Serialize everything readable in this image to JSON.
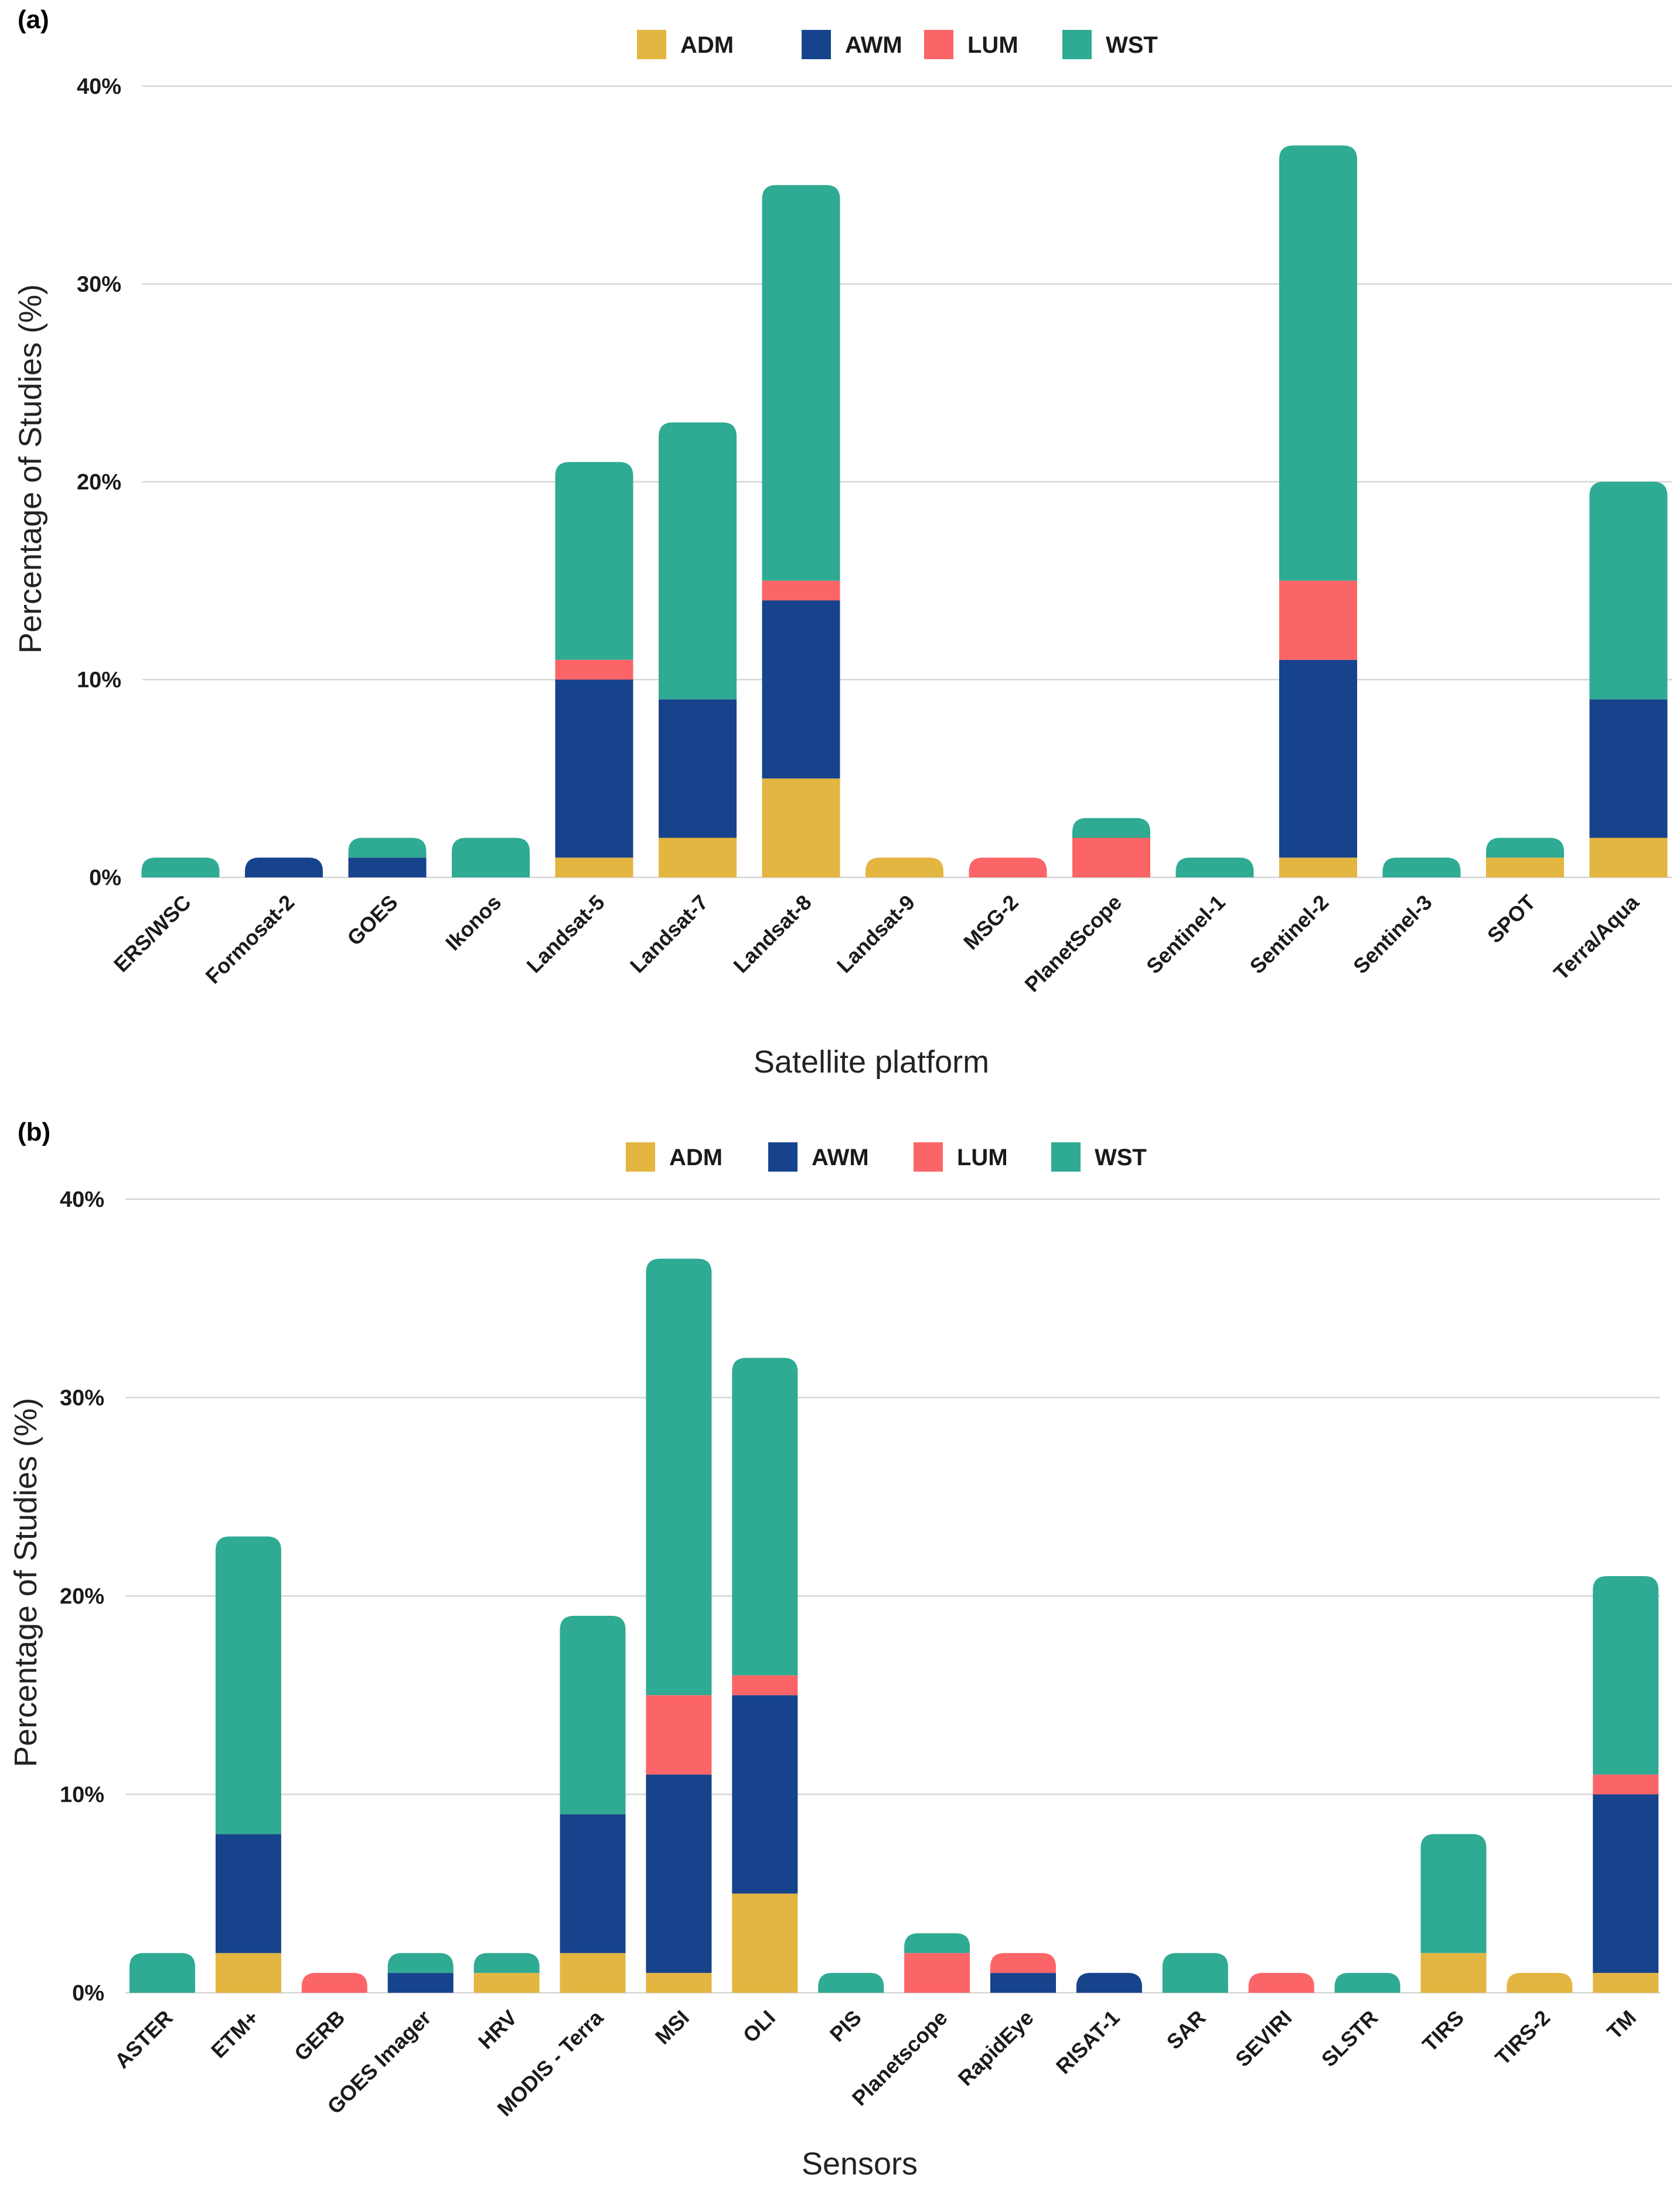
{
  "colors": {
    "ADM": "#E3B541",
    "AWM": "#17438C",
    "LUM": "#FC6567",
    "WST": "#2FAA93"
  },
  "chart_data": [
    {
      "type": "bar",
      "stacked": true,
      "panel_label": "(a)",
      "xlabel": "Satellite platform",
      "ylabel": "Percentage of Studies (%)",
      "ylim": [
        0,
        40
      ],
      "yticks": [
        "0%",
        "10%",
        "20%",
        "30%",
        "40%"
      ],
      "legend": [
        "ADM",
        "AWM",
        "LUM",
        "WST"
      ],
      "categories": [
        "ERS/WSC",
        "Formosat-2",
        "GOES",
        "Ikonos",
        "Landsat-5",
        "Landsat-7",
        "Landsat-8",
        "Landsat-9",
        "MSG-2",
        "PlanetScope",
        "Sentinel-1",
        "Sentinel-2",
        "Sentinel-3",
        "SPOT",
        "Terra/Aqua"
      ],
      "series": [
        {
          "name": "ADM",
          "values": [
            0,
            0,
            0,
            0,
            1,
            2,
            5,
            1,
            0,
            0,
            0,
            1,
            0,
            1,
            2
          ]
        },
        {
          "name": "AWM",
          "values": [
            0,
            1,
            1,
            0,
            9,
            7,
            9,
            0,
            0,
            0,
            0,
            10,
            0,
            0,
            7
          ]
        },
        {
          "name": "LUM",
          "values": [
            0,
            0,
            0,
            0,
            1,
            0,
            1,
            0,
            1,
            2,
            0,
            4,
            0,
            0,
            0
          ]
        },
        {
          "name": "WST",
          "values": [
            1,
            0,
            1,
            2,
            10,
            14,
            20,
            0,
            0,
            1,
            1,
            22,
            1,
            1,
            11
          ]
        }
      ]
    },
    {
      "type": "bar",
      "stacked": true,
      "panel_label": "(b)",
      "xlabel": "Sensors",
      "ylabel": "Percentage of Studies (%)",
      "ylim": [
        0,
        40
      ],
      "yticks": [
        "0%",
        "10%",
        "20%",
        "30%",
        "40%"
      ],
      "legend": [
        "ADM",
        "AWM",
        "LUM",
        "WST"
      ],
      "categories": [
        "ASTER",
        "ETM+",
        "GERB",
        "GOES Imager",
        "HRV",
        "MODIS - Terra",
        "MSI",
        "OLI",
        "PIS",
        "Planetscope",
        "RapidEye",
        "RISAT-1",
        "SAR",
        "SEVIRI",
        "SLSTR",
        "TIRS",
        "TIRS-2",
        "TM"
      ],
      "series": [
        {
          "name": "ADM",
          "values": [
            0,
            2,
            0,
            0,
            1,
            2,
            1,
            5,
            0,
            0,
            0,
            0,
            0,
            0,
            0,
            2,
            1,
            1
          ]
        },
        {
          "name": "AWM",
          "values": [
            0,
            6,
            0,
            1,
            0,
            7,
            10,
            10,
            0,
            0,
            1,
            1,
            0,
            0,
            0,
            0,
            0,
            9
          ]
        },
        {
          "name": "LUM",
          "values": [
            0,
            0,
            1,
            0,
            0,
            0,
            4,
            1,
            0,
            2,
            1,
            0,
            0,
            1,
            0,
            0,
            0,
            1
          ]
        },
        {
          "name": "WST",
          "values": [
            2,
            15,
            0,
            1,
            1,
            10,
            22,
            16,
            1,
            1,
            0,
            0,
            2,
            0,
            1,
            6,
            0,
            10
          ]
        }
      ]
    }
  ]
}
